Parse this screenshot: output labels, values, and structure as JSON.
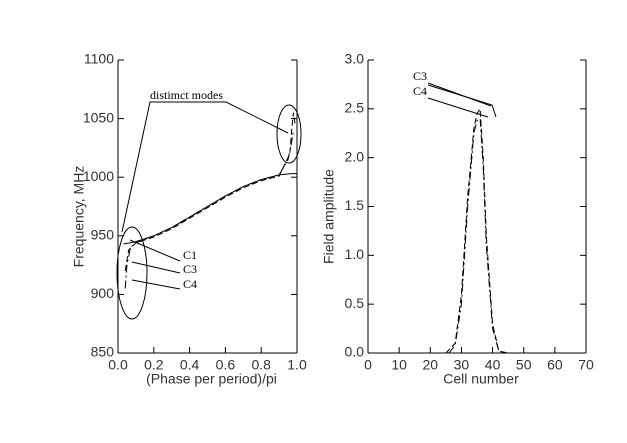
{
  "chart_data": [
    {
      "type": "line",
      "xlabel": "(Phase per period)/pi",
      "ylabel": "Frequency, MHz",
      "xlim": [
        0,
        1
      ],
      "xticks": [
        {
          "value": 0,
          "label": "0.0"
        },
        0.2,
        0.4,
        0.6,
        0.8,
        {
          "value": 1,
          "label": "1.0"
        }
      ],
      "ylim": [
        850,
        1100
      ],
      "yticks": [
        850,
        900,
        950,
        1000,
        1050,
        1100
      ],
      "annotations": [
        "distimct modes",
        "C1",
        "C3",
        "C4"
      ],
      "series": [
        {
          "name": "C1",
          "color": "#000000",
          "style": "solid",
          "x": [
            0.03,
            0.1,
            0.2,
            0.3,
            0.4,
            0.5,
            0.6,
            0.7,
            0.8,
            0.9,
            0.97,
            1.0
          ],
          "values": [
            943,
            945,
            950,
            957,
            966,
            975,
            984,
            992,
            998,
            1002,
            1003,
            1003
          ]
        },
        {
          "name": "C3",
          "color": "#000000",
          "style": "dashed",
          "x": [
            0.04,
            0.06,
            0.1,
            0.2,
            0.3,
            0.4,
            0.5,
            0.6,
            0.7,
            0.8,
            0.9,
            0.96,
            0.97,
            0.98,
            0.99
          ],
          "values": [
            920,
            938,
            944,
            949,
            956,
            965,
            974,
            983,
            991,
            997,
            1001,
            1020,
            1040,
            1055,
            1045
          ]
        },
        {
          "name": "C4",
          "color": "#000000",
          "style": "dashdot",
          "x": [
            0.04,
            0.05,
            0.07,
            0.1,
            0.2,
            0.3,
            0.4,
            0.5,
            0.6,
            0.7,
            0.8,
            0.9,
            0.95,
            0.97,
            0.98
          ],
          "values": [
            905,
            925,
            940,
            944,
            950,
            957,
            966,
            975,
            984,
            992,
            998,
            1002,
            1015,
            1030,
            1040
          ]
        }
      ]
    },
    {
      "type": "line",
      "xlabel": "Cell number",
      "ylabel": "Field amplitude",
      "xlim": [
        0,
        70
      ],
      "xticks": [
        0,
        10,
        20,
        30,
        40,
        50,
        60,
        70
      ],
      "ylim": [
        0,
        3
      ],
      "yticks": [
        {
          "value": 0,
          "label": "0.0"
        },
        0.5,
        {
          "value": 1,
          "label": "1.0"
        },
        1.5,
        {
          "value": 2,
          "label": "2.0"
        },
        2.5,
        {
          "value": 3,
          "label": "3.0"
        }
      ],
      "annotations": [
        "C3",
        "C4"
      ],
      "series": [
        {
          "name": "C3",
          "color": "#000000",
          "style": "dashed",
          "x": [
            25,
            28,
            30,
            32,
            34,
            35,
            36,
            37,
            38,
            40,
            42,
            45
          ],
          "values": [
            0,
            0.1,
            0.6,
            1.6,
            2.3,
            2.45,
            2.5,
            2.0,
            1.2,
            0.3,
            0.02,
            0
          ]
        },
        {
          "name": "C4",
          "color": "#000000",
          "style": "dashdot",
          "x": [
            26,
            28,
            30,
            32,
            34,
            35,
            36,
            37,
            38,
            40,
            42,
            44
          ],
          "values": [
            0,
            0.08,
            0.5,
            1.5,
            2.25,
            2.38,
            2.4,
            1.9,
            1.1,
            0.25,
            0.02,
            0
          ]
        }
      ]
    }
  ]
}
